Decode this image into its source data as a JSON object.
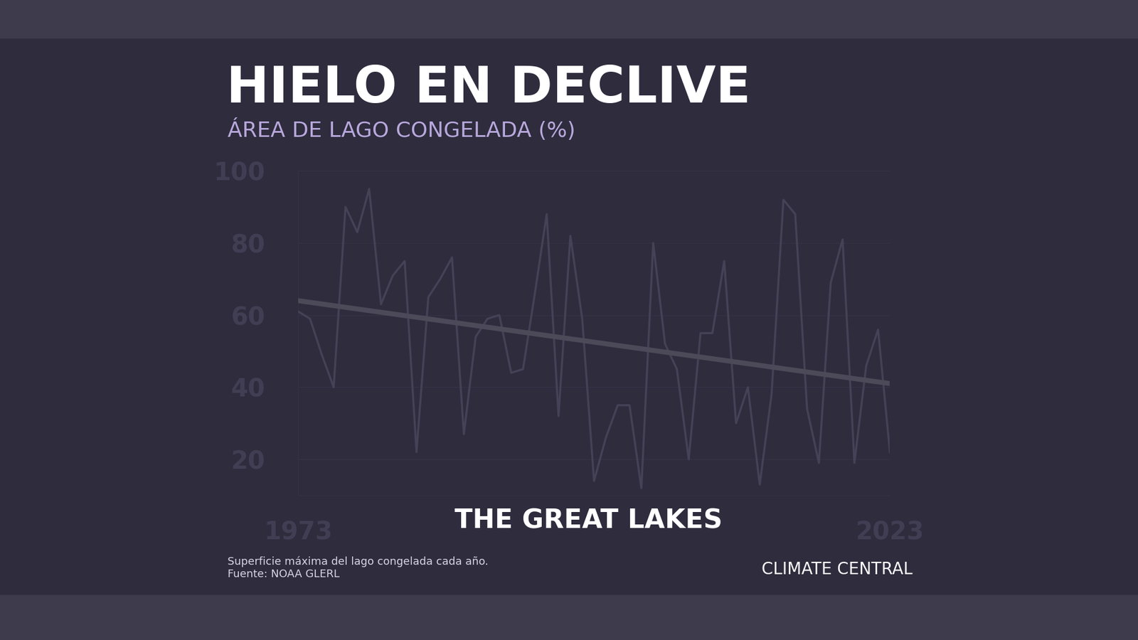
{
  "chart_data": {
    "type": "line",
    "title": "HIELO EN DECLIVE",
    "subtitle": "ÁREA DE LAGO CONGELADA (%)",
    "annotations": [
      "THE GREAT LAKES",
      "Superficie máxima del lago congelada cada año.",
      "Fuente: NOAA GLERL",
      "CLIMATE CENTRAL"
    ],
    "x": [
      1973,
      1974,
      1975,
      1976,
      1977,
      1978,
      1979,
      1980,
      1981,
      1982,
      1983,
      1984,
      1985,
      1986,
      1987,
      1988,
      1989,
      1990,
      1991,
      1992,
      1993,
      1994,
      1995,
      1996,
      1997,
      1998,
      1999,
      2000,
      2001,
      2002,
      2003,
      2004,
      2005,
      2006,
      2007,
      2008,
      2009,
      2010,
      2011,
      2012,
      2013,
      2014,
      2015,
      2016,
      2017,
      2018,
      2019,
      2020,
      2021,
      2022,
      2023
    ],
    "values": [
      61,
      59,
      49,
      40,
      90,
      83,
      95,
      63,
      71,
      75,
      22,
      65,
      70,
      76,
      27,
      54,
      59,
      60,
      44,
      45,
      66,
      88,
      32,
      82,
      59,
      14,
      26,
      35,
      35,
      12,
      80,
      52,
      45,
      20,
      55,
      55,
      75,
      30,
      40,
      13,
      38,
      92,
      88,
      34,
      19,
      69,
      81,
      19,
      46,
      56,
      22
    ],
    "color": "#d4c4f0",
    "trend": [
      64,
      41
    ],
    "xlim": [
      1973,
      2023
    ],
    "xticks": [
      1973,
      2023
    ],
    "ylim": [
      10,
      100
    ],
    "yticks": [
      20,
      40,
      60,
      80,
      100
    ],
    "grid": true
  }
}
